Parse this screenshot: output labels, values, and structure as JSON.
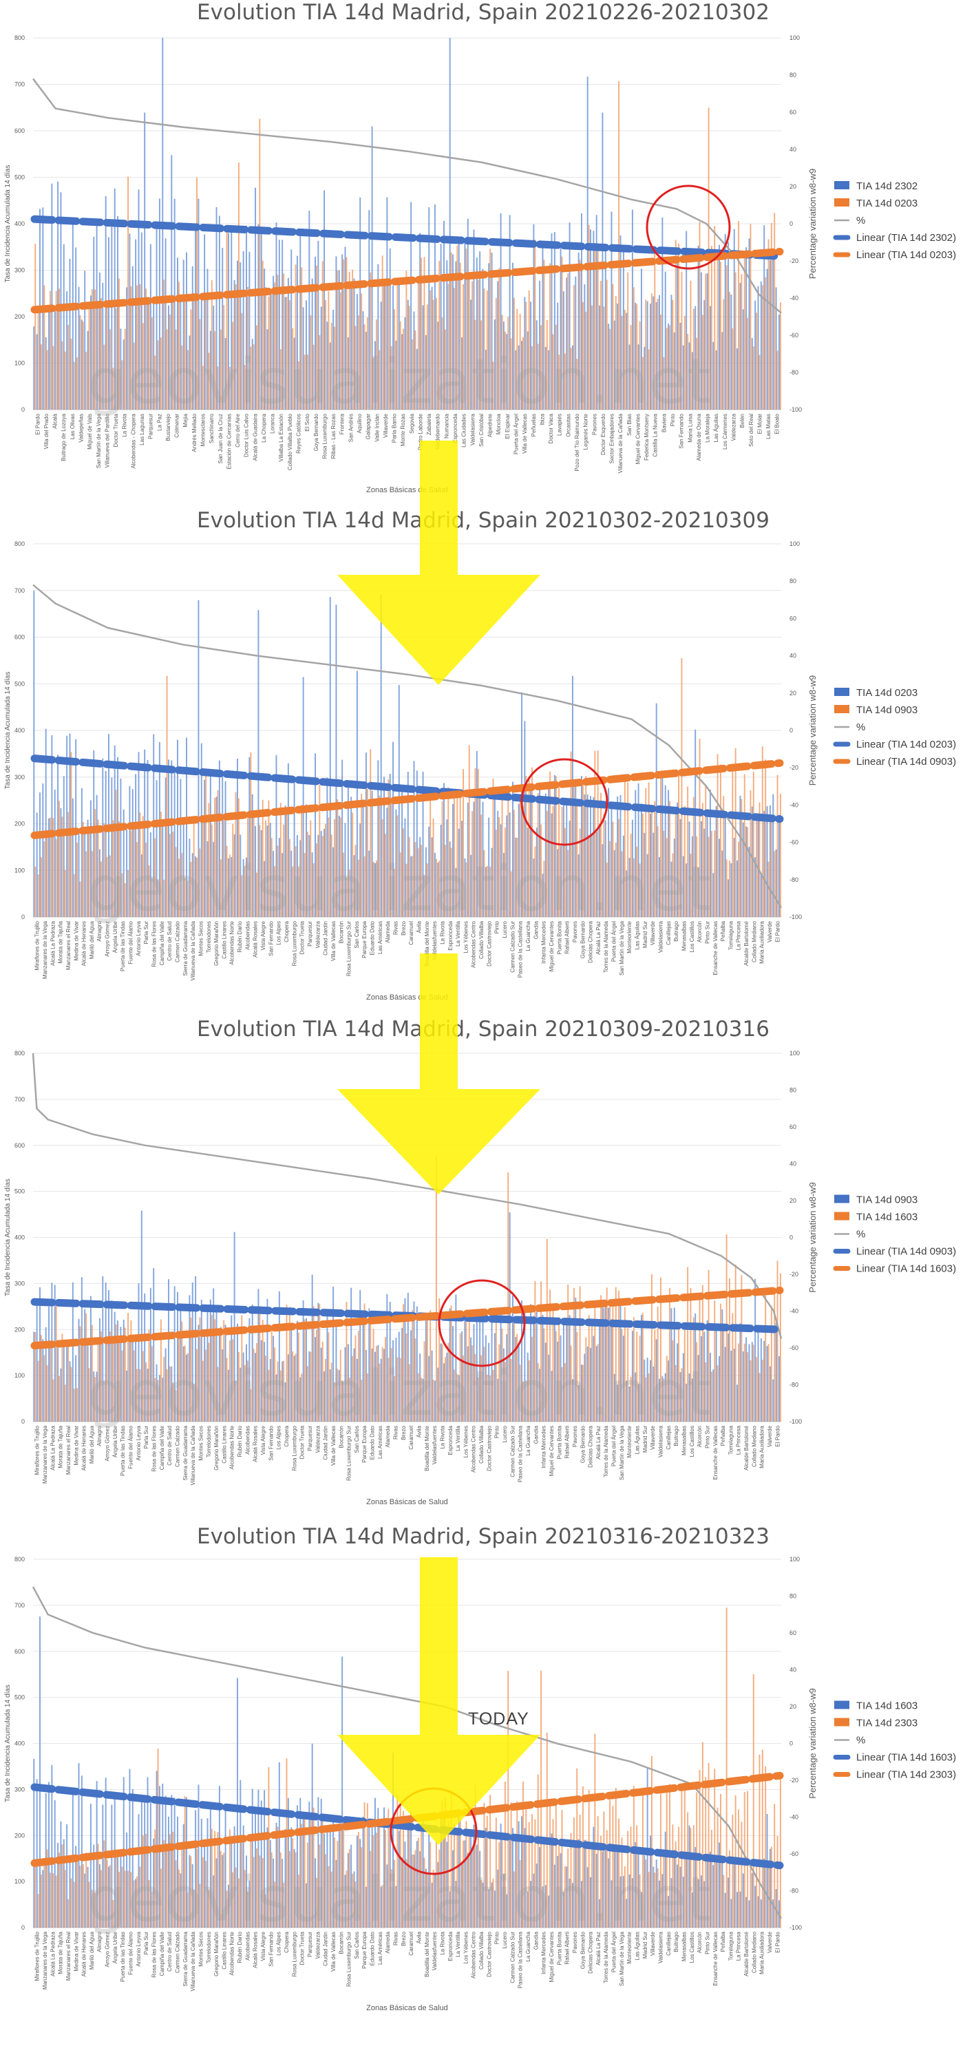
{
  "watermark": "geovisualization.net",
  "today_label": "TODAY",
  "chart_data": [
    {
      "type": "bar",
      "title": "Evolution TIA 14d Madrid, Spain 20210226-20210302",
      "xlabel": "Zonas Básicas de Salud",
      "ylabel": "Tasa de Incidencia Acumulada 14 días",
      "y2label": "Percentage variation w8-w9",
      "ylim": [
        0,
        800
      ],
      "y2lim": [
        -100,
        100
      ],
      "yticks": [
        "800",
        "700",
        "600",
        "500",
        "400",
        "300",
        "200",
        "100",
        "0"
      ],
      "y2ticks": [
        "100",
        "80",
        "60",
        "40",
        "20",
        "0",
        "-20",
        "-40",
        "-60",
        "-80",
        "-100"
      ],
      "legend_position": "right",
      "series": [
        {
          "name": "TIA 14d 2302",
          "kind": "bar",
          "color": "#4472c4"
        },
        {
          "name": "TIA 14d 0203",
          "kind": "bar",
          "color": "#ed7d31"
        },
        {
          "name": "%",
          "kind": "line",
          "color": "#a5a5a5"
        },
        {
          "name": "Linear (TIA 14d 2302)",
          "kind": "trend",
          "color": "#4472c4",
          "from": 410,
          "to": 330
        },
        {
          "name": "Linear (TIA 14d 0203)",
          "kind": "trend",
          "color": "#ed7d31",
          "from": 215,
          "to": 340
        }
      ],
      "pct_curve": [
        [
          0,
          78
        ],
        [
          0.03,
          62
        ],
        [
          0.1,
          57
        ],
        [
          0.2,
          52
        ],
        [
          0.3,
          48
        ],
        [
          0.4,
          44
        ],
        [
          0.5,
          39
        ],
        [
          0.6,
          33
        ],
        [
          0.7,
          24
        ],
        [
          0.8,
          13
        ],
        [
          0.86,
          8
        ],
        [
          0.9,
          0
        ],
        [
          0.94,
          -18
        ],
        [
          0.97,
          -38
        ],
        [
          1,
          -48
        ]
      ],
      "categories": [
        "El Pardo",
        "Villa del Prado",
        "Alcalá",
        "Buitrago de Lozoya",
        "Las Olivas",
        "Valdepeñas",
        "Miguel de Vals",
        "San Martín de la Vega",
        "Villanueva del Pardillo",
        "Doctor Trueta",
        "La Rivota",
        "Alcobendas - Chopera",
        "Las Lagunas",
        "Parquesur",
        "La Paz",
        "Bustarviejo",
        "Colmenar",
        "Mejía",
        "Andrés Mellado",
        "Montesclaros",
        "Sanchinarro",
        "San Juan de la Cruz",
        "Estación de Cercanías",
        "Cerro del Aire",
        "Doctor Luis Calvo",
        "Alcalá de Guadaíra",
        "La Chopera",
        "Loranca",
        "Villalba La Estación",
        "Collado Villalba Pueblo",
        "Reyes Católicos",
        "El Soto",
        "Goya Bernardo",
        "Rosa Luxemburgo",
        "Ribas - Las Rozas",
        "Frontera",
        "San Andrés",
        "Aquilino",
        "Galapagar",
        "Valle Inclán",
        "Villaverde",
        "Parla Barrio",
        "Monte Rozas",
        "Segovia",
        "Pedro Laborde",
        "Zabaleta",
        "Valdebernardo",
        "Numancia",
        "Espronceda",
        "Las Ciudades",
        "Valdelasierra",
        "San Cristóbal",
        "Alpedrete",
        "Moncloa",
        "El Espinar",
        "Puerta del Ángel",
        "Villa de Vallecas",
        "Peñuelas",
        "Ibiza",
        "Doctor Vaca",
        "Lavapiés",
        "Orcasitas",
        "Pozo del Tío Raimundo",
        "Leganés Norte",
        "Pavones",
        "Doctor Esquerdo",
        "Sector Embajadores",
        "Villanueva de la Cañada",
        "San Blas",
        "Miguel de Cervantes",
        "Federica Montseny",
        "Castilla La Nueva",
        "Baviera",
        "Pinto",
        "San Fernando",
        "María Luisa",
        "Alameda de Osuna",
        "La Moraleja",
        "Las Águilas",
        "Los Cármenes",
        "Valdezarza",
        "Belén",
        "Soto del Real",
        "El Molar",
        "Las Matas",
        "El Boalo"
      ]
    },
    {
      "type": "bar",
      "title": "Evolution TIA 14d Madrid, Spain 20210302-20210309",
      "xlabel": "Zonas Básicas de Salud",
      "ylabel": "Tasa de Incidencia Acumulada 14 días",
      "y2label": "Percentage variation w8-w9",
      "ylim": [
        0,
        800
      ],
      "y2lim": [
        -100,
        100
      ],
      "yticks": [
        "800",
        "700",
        "600",
        "500",
        "400",
        "300",
        "200",
        "100",
        "0"
      ],
      "y2ticks": [
        "100",
        "80",
        "60",
        "40",
        "20",
        "0",
        "-20",
        "-40",
        "-60",
        "-80",
        "-100"
      ],
      "legend_position": "right",
      "series": [
        {
          "name": "TIA 14d 0203",
          "kind": "bar",
          "color": "#4472c4"
        },
        {
          "name": "TIA 14d 0903",
          "kind": "bar",
          "color": "#ed7d31"
        },
        {
          "name": "%",
          "kind": "line",
          "color": "#a5a5a5"
        },
        {
          "name": "Linear (TIA 14d 0203)",
          "kind": "trend",
          "color": "#4472c4",
          "from": 340,
          "to": 210
        },
        {
          "name": "Linear (TIA 14d 0903)",
          "kind": "trend",
          "color": "#ed7d31",
          "from": 175,
          "to": 330
        }
      ],
      "pct_curve": [
        [
          0,
          78
        ],
        [
          0.03,
          68
        ],
        [
          0.1,
          55
        ],
        [
          0.2,
          46
        ],
        [
          0.3,
          40
        ],
        [
          0.4,
          35
        ],
        [
          0.5,
          30
        ],
        [
          0.6,
          24
        ],
        [
          0.7,
          16
        ],
        [
          0.8,
          6
        ],
        [
          0.85,
          -8
        ],
        [
          0.9,
          -30
        ],
        [
          0.95,
          -60
        ],
        [
          0.98,
          -82
        ],
        [
          1,
          -95
        ]
      ],
      "categories": [
        "Miraflores de Trujillo",
        "Manzanares de la Vega",
        "Alcalá La Pedraza",
        "Morata de Tajuña",
        "Manzanares el Real",
        "Medina de Vivar",
        "Alcalá de Henares",
        "Mariló del Agua",
        "Almagro",
        "Arroyo Gómez",
        "Ángela Uribe",
        "Puerta de las Tindas",
        "Fuente del Álamo",
        "Antonio Leyva",
        "Parla Sur",
        "Rosa de las Flores",
        "Campiña del Valle",
        "Centro de Salud",
        "Carmen Calzado",
        "Sierra de Guadarrama",
        "Villanueva de la Cañada",
        "Montes Secos",
        "Torrelodones",
        "Gregorio Marañón",
        "Castillo Linares",
        "Alcobendas Norte",
        "Rubén Darío",
        "Alcobendas",
        "Alcalá Rosales",
        "Vista Alegre",
        "San Fernando",
        "Los Alpes",
        "Chopera",
        "Rosa Luxemburgo",
        "Doctor Trueta",
        "Parquesur",
        "Valdezarza",
        "Ciudad Jardín",
        "Villa de Vallecas",
        "Bocarrón",
        "Rosa Luxemburgo Sur",
        "San Carlos",
        "Parque Europa",
        "Eduardo Dato",
        "Las Américas",
        "Alameda",
        "Rivas",
        "Brezo",
        "Caramuel",
        "Ávila",
        "Boadilla del Monte",
        "Valdelasfuentes",
        "La Rivota",
        "Espronceda",
        "La Ventilla",
        "Los Yébenes",
        "Alcobendas Centro",
        "Collado Villalba",
        "Doctor Castroviejo",
        "Pinto",
        "Lucero",
        "Carmen Calzado Sur",
        "Paseo de la Castellana",
        "La Guancha",
        "Gandía",
        "Infanta Mercedes",
        "Miguel de Cervantes",
        "Puerta Bonita",
        "Rafael Alberti",
        "Pavones",
        "Goya Bernardo",
        "Delicias Chopera",
        "Alcalá La Paz",
        "Torres de la Alameda",
        "Puerta del Ángel",
        "San Martín de la Vega",
        "Monteoriente",
        "Las Águilas",
        "Madrid Sur",
        "Villaverde",
        "Valdelasierra",
        "Canillejas",
        "Buitrago",
        "Menasalbas",
        "Los Castillos",
        "Alcorcón",
        "Pinto Sur",
        "Ensanche de Vallecas",
        "Peñalba",
        "Torrelaguna",
        "La Princesa",
        "Alcalde Bartolomé",
        "Collado Mediano",
        "María Auxiliadora",
        "Valverde",
        "El Pardo"
      ]
    },
    {
      "type": "bar",
      "title": "Evolution TIA 14d Madrid, Spain 20210309-20210316",
      "xlabel": "Zonas Básicas de Salud",
      "ylabel": "Tasa de Incidencia Acumulada 14 días",
      "y2label": "Percentage variation w8-w9",
      "ylim": [
        0,
        800
      ],
      "y2lim": [
        -100,
        100
      ],
      "yticks": [
        "800",
        "700",
        "600",
        "500",
        "400",
        "300",
        "200",
        "100",
        "0"
      ],
      "y2ticks": [
        "100",
        "80",
        "60",
        "40",
        "20",
        "0",
        "-20",
        "-40",
        "-60",
        "-80",
        "-100"
      ],
      "legend_position": "right",
      "series": [
        {
          "name": "TIA 14d 0903",
          "kind": "bar",
          "color": "#4472c4"
        },
        {
          "name": "TIA 14d 1603",
          "kind": "bar",
          "color": "#ed7d31"
        },
        {
          "name": "%",
          "kind": "line",
          "color": "#a5a5a5"
        },
        {
          "name": "Linear (TIA 14d 0903)",
          "kind": "trend",
          "color": "#4472c4",
          "from": 260,
          "to": 200
        },
        {
          "name": "Linear (TIA 14d 1603)",
          "kind": "trend",
          "color": "#ed7d31",
          "from": 165,
          "to": 285
        }
      ],
      "pct_curve": [
        [
          0,
          100
        ],
        [
          0.005,
          70
        ],
        [
          0.02,
          64
        ],
        [
          0.08,
          56
        ],
        [
          0.15,
          50
        ],
        [
          0.25,
          44
        ],
        [
          0.35,
          38
        ],
        [
          0.45,
          32
        ],
        [
          0.55,
          25
        ],
        [
          0.65,
          18
        ],
        [
          0.75,
          10
        ],
        [
          0.85,
          2
        ],
        [
          0.92,
          -10
        ],
        [
          0.96,
          -22
        ],
        [
          0.99,
          -40
        ],
        [
          1,
          -55
        ]
      ],
      "categories": [
        "Miraflores de Trujillo",
        "Manzanares de la Vega",
        "Alcalá La Pedraza",
        "Morata de Tajuña",
        "Manzanares el Real",
        "Medina de Vivar",
        "Alcalá de Henares",
        "Mariló del Agua",
        "Almagro",
        "Arroyo Gómez",
        "Ángela Uribe",
        "Puerta de las Tindas",
        "Fuente del Álamo",
        "Antonio Leyva",
        "Parla Sur",
        "Rosa de las Flores",
        "Campiña del Valle",
        "Centro de Salud",
        "Carmen Calzado",
        "Sierra de Guadarrama",
        "Villanueva de la Cañada",
        "Montes Secos",
        "Torrelodones",
        "Gregorio Marañón",
        "Castillo Linares",
        "Alcobendas Norte",
        "Rubén Darío",
        "Alcobendas",
        "Alcalá Rosales",
        "Vista Alegre",
        "San Fernando",
        "Los Alpes",
        "Chopera",
        "Rosa Luxemburgo",
        "Doctor Trueta",
        "Parquesur",
        "Valdezarza",
        "Ciudad Jardín",
        "Villa de Vallecas",
        "Bocarrón",
        "Rosa Luxemburgo Sur",
        "San Carlos",
        "Parque Europa",
        "Eduardo Dato",
        "Las Américas",
        "Alameda",
        "Rivas",
        "Brezo",
        "Caramuel",
        "Ávila",
        "Boadilla del Monte",
        "Valdelasfuentes",
        "La Rivota",
        "Espronceda",
        "La Ventilla",
        "Los Yébenes",
        "Alcobendas Centro",
        "Collado Villalba",
        "Doctor Castroviejo",
        "Pinto",
        "Lucero",
        "Carmen Calzado Sur",
        "Paseo de la Castellana",
        "La Guancha",
        "Gandía",
        "Infanta Mercedes",
        "Miguel de Cervantes",
        "Puerta Bonita",
        "Rafael Alberti",
        "Pavones",
        "Goya Bernardo",
        "Delicias Chopera",
        "Alcalá La Paz",
        "Torres de la Alameda",
        "Puerta del Ángel",
        "San Martín de la Vega",
        "Monteoriente",
        "Las Águilas",
        "Madrid Sur",
        "Villaverde",
        "Valdelasierra",
        "Canillejas",
        "Buitrago",
        "Menasalbas",
        "Los Castillos",
        "Alcorcón",
        "Pinto Sur",
        "Ensanche de Vallecas",
        "Peñalba",
        "Torrelaguna",
        "La Princesa",
        "Alcalde Bartolomé",
        "Collado Mediano",
        "María Auxiliadora",
        "Valverde",
        "El Pardo"
      ]
    },
    {
      "type": "bar",
      "title": "Evolution TIA 14d Madrid, Spain 20210316-20210323",
      "xlabel": "Zonas Básicas de Salud",
      "ylabel": "Tasa de Incidencia Acumulada 14 días",
      "y2label": "Percentage variation w8-w9",
      "ylim": [
        0,
        800
      ],
      "y2lim": [
        -100,
        100
      ],
      "yticks": [
        "800",
        "700",
        "600",
        "500",
        "400",
        "300",
        "200",
        "100",
        "0"
      ],
      "y2ticks": [
        "100",
        "80",
        "60",
        "40",
        "20",
        "0",
        "-20",
        "-40",
        "-60",
        "-80",
        "-100"
      ],
      "legend_position": "right",
      "series": [
        {
          "name": "TIA 14d 1603",
          "kind": "bar",
          "color": "#4472c4"
        },
        {
          "name": "TIA 14d 2303",
          "kind": "bar",
          "color": "#ed7d31"
        },
        {
          "name": "%",
          "kind": "line",
          "color": "#a5a5a5"
        },
        {
          "name": "Linear (TIA 14d 1603)",
          "kind": "trend",
          "color": "#4472c4",
          "from": 305,
          "to": 135
        },
        {
          "name": "Linear (TIA 14d 2303)",
          "kind": "trend",
          "color": "#ed7d31",
          "from": 140,
          "to": 330
        }
      ],
      "pct_curve": [
        [
          0,
          85
        ],
        [
          0.02,
          70
        ],
        [
          0.08,
          60
        ],
        [
          0.15,
          52
        ],
        [
          0.25,
          44
        ],
        [
          0.35,
          36
        ],
        [
          0.45,
          28
        ],
        [
          0.55,
          20
        ],
        [
          0.62,
          10
        ],
        [
          0.7,
          0
        ],
        [
          0.8,
          -10
        ],
        [
          0.88,
          -22
        ],
        [
          0.93,
          -45
        ],
        [
          0.97,
          -75
        ],
        [
          1,
          -95
        ]
      ],
      "categories": [
        "Miraflores de Trujillo",
        "Manzanares de la Vega",
        "Alcalá La Pedraza",
        "Morata de Tajuña",
        "Manzanares el Real",
        "Medina de Vivar",
        "Alcalá de Henares",
        "Mariló del Agua",
        "Almagro",
        "Arroyo Gómez",
        "Ángela Uribe",
        "Puerta de las Tindas",
        "Fuente del Álamo",
        "Antonio Leyva",
        "Parla Sur",
        "Rosa de las Flores",
        "Campiña del Valle",
        "Centro de Salud",
        "Carmen Calzado",
        "Sierra de Guadarrama",
        "Villanueva de la Cañada",
        "Montes Secos",
        "Torrelodones",
        "Gregorio Marañón",
        "Castillo Linares",
        "Alcobendas Norte",
        "Rubén Darío",
        "Alcobendas",
        "Alcalá Rosales",
        "Vista Alegre",
        "San Fernando",
        "Los Alpes",
        "Chopera",
        "Rosa Luxemburgo",
        "Doctor Trueta",
        "Parquesur",
        "Valdezarza",
        "Ciudad Jardín",
        "Villa de Vallecas",
        "Bocarrón",
        "Rosa Luxemburgo Sur",
        "San Carlos",
        "Parque Europa",
        "Eduardo Dato",
        "Las Américas",
        "Alameda",
        "Rivas",
        "Brezo",
        "Caramuel",
        "Ávila",
        "Boadilla del Monte",
        "Valdelasfuentes",
        "La Rivota",
        "Espronceda",
        "La Ventilla",
        "Los Yébenes",
        "Alcobendas Centro",
        "Collado Villalba",
        "Doctor Castroviejo",
        "Pinto",
        "Lucero",
        "Carmen Calzado Sur",
        "Paseo de la Castellana",
        "La Guancha",
        "Gandía",
        "Infanta Mercedes",
        "Miguel de Cervantes",
        "Puerta Bonita",
        "Rafael Alberti",
        "Pavones",
        "Goya Bernardo",
        "Delicias Chopera",
        "Alcalá La Paz",
        "Torres de la Alameda",
        "Puerta del Ángel",
        "San Martín de la Vega",
        "Monteoriente",
        "Las Águilas",
        "Madrid Sur",
        "Villaverde",
        "Valdelasierra",
        "Canillejas",
        "Buitrago",
        "Menasalbas",
        "Los Castillos",
        "Alcorcón",
        "Pinto Sur",
        "Ensanche de Vallecas",
        "Peñalba",
        "Torrelaguna",
        "La Princesa",
        "Alcalde Bartolomé",
        "Collado Mediano",
        "María Auxiliadora",
        "Valverde",
        "El Pardo"
      ]
    }
  ]
}
